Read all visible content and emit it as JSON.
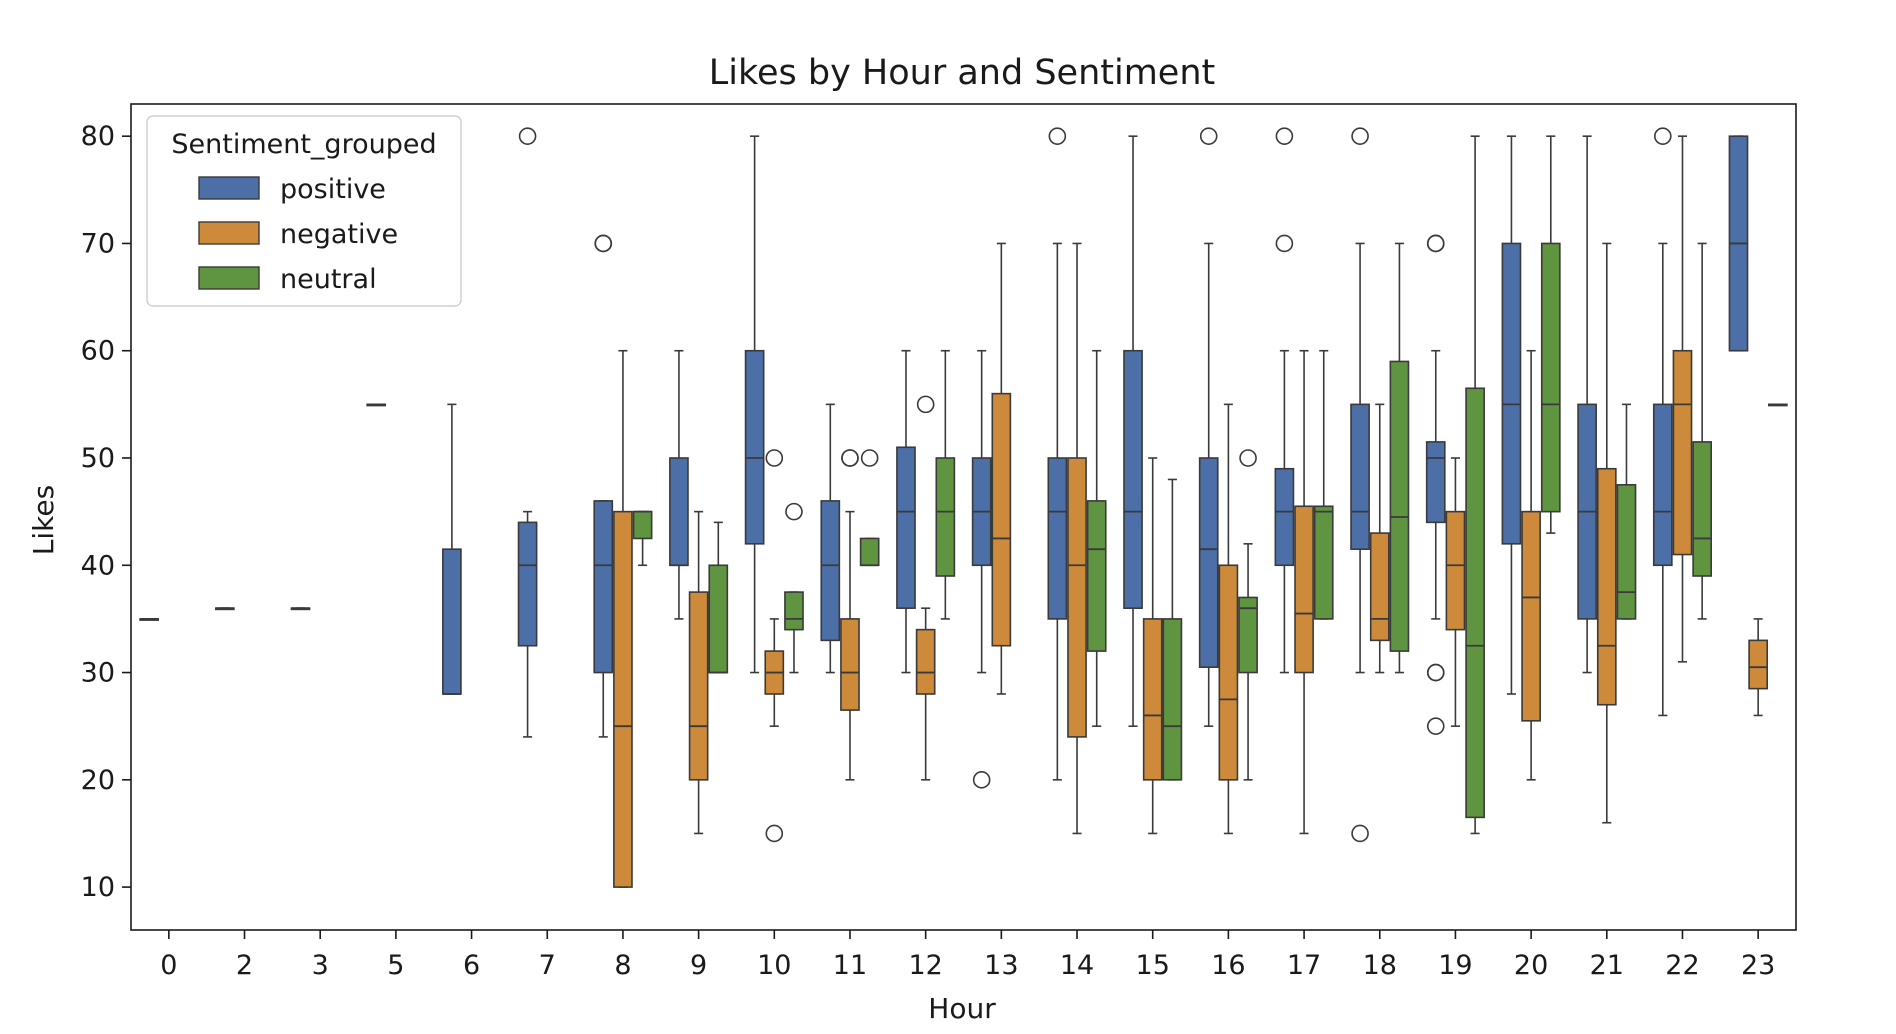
{
  "chart_data": {
    "type": "box",
    "title": "Likes by Hour and Sentiment",
    "xlabel": "Hour",
    "ylabel": "Likes",
    "ylim": [
      6,
      83
    ],
    "yticks": [
      10,
      20,
      30,
      40,
      50,
      60,
      70,
      80
    ],
    "categories": [
      "0",
      "2",
      "3",
      "5",
      "6",
      "7",
      "8",
      "9",
      "10",
      "11",
      "12",
      "13",
      "14",
      "15",
      "16",
      "17",
      "18",
      "19",
      "20",
      "21",
      "22",
      "23"
    ],
    "legend": {
      "title": "Sentiment_grouped",
      "placement": "upper-left"
    },
    "series": [
      {
        "name": "positive",
        "color": "#4c6fa8"
      },
      {
        "name": "negative",
        "color": "#cc8a3a"
      },
      {
        "name": "neutral",
        "color": "#5f9441"
      }
    ],
    "boxes": [
      {
        "hour": "0",
        "series": "positive",
        "offset": -1,
        "whislo": 35,
        "q1": 35,
        "med": 35,
        "q3": 35,
        "whishi": 35,
        "fliers": []
      },
      {
        "hour": "2",
        "series": "positive",
        "offset": -1,
        "whislo": 36,
        "q1": 36,
        "med": 36,
        "q3": 36,
        "whishi": 36,
        "fliers": []
      },
      {
        "hour": "3",
        "series": "positive",
        "offset": -1,
        "whislo": 36,
        "q1": 36,
        "med": 36,
        "q3": 36,
        "whishi": 36,
        "fliers": []
      },
      {
        "hour": "5",
        "series": "positive",
        "offset": -1,
        "whislo": 55,
        "q1": 55,
        "med": 55,
        "q3": 55,
        "whishi": 55,
        "fliers": []
      },
      {
        "hour": "6",
        "series": "positive",
        "offset": -1,
        "whislo": 28,
        "q1": 28,
        "med": 28,
        "q3": 41.5,
        "whishi": 55,
        "fliers": []
      },
      {
        "hour": "7",
        "series": "positive",
        "offset": -1,
        "whislo": 24,
        "q1": 32.5,
        "med": 40,
        "q3": 44,
        "whishi": 45,
        "fliers": [
          80
        ]
      },
      {
        "hour": "8",
        "series": "positive",
        "offset": -1,
        "whislo": 24,
        "q1": 30,
        "med": 40,
        "q3": 46,
        "whishi": 46,
        "fliers": [
          70,
          70
        ]
      },
      {
        "hour": "8",
        "series": "negative",
        "offset": 0,
        "whislo": 10,
        "q1": 10,
        "med": 25,
        "q3": 45,
        "whishi": 60,
        "fliers": []
      },
      {
        "hour": "8",
        "series": "neutral",
        "offset": 1,
        "whislo": 40,
        "q1": 42.5,
        "med": 45,
        "q3": 45,
        "whishi": 45,
        "fliers": []
      },
      {
        "hour": "9",
        "series": "positive",
        "offset": -1,
        "whislo": 35,
        "q1": 40,
        "med": 40,
        "q3": 50,
        "whishi": 60,
        "fliers": []
      },
      {
        "hour": "9",
        "series": "negative",
        "offset": 0,
        "whislo": 15,
        "q1": 20,
        "med": 25,
        "q3": 37.5,
        "whishi": 45,
        "fliers": []
      },
      {
        "hour": "9",
        "series": "neutral",
        "offset": 1,
        "whislo": 30,
        "q1": 30,
        "med": 30,
        "q3": 40,
        "whishi": 44,
        "fliers": []
      },
      {
        "hour": "10",
        "series": "positive",
        "offset": -1,
        "whislo": 30,
        "q1": 42,
        "med": 50,
        "q3": 60,
        "whishi": 80,
        "fliers": []
      },
      {
        "hour": "10",
        "series": "negative",
        "offset": 0,
        "whislo": 25,
        "q1": 28,
        "med": 30,
        "q3": 32,
        "whishi": 35,
        "fliers": [
          50,
          15
        ]
      },
      {
        "hour": "10",
        "series": "neutral",
        "offset": 1,
        "whislo": 30,
        "q1": 34,
        "med": 35,
        "q3": 37.5,
        "whishi": 37.5,
        "fliers": [
          45
        ]
      },
      {
        "hour": "11",
        "series": "positive",
        "offset": -1,
        "whislo": 30,
        "q1": 33,
        "med": 40,
        "q3": 46,
        "whishi": 55,
        "fliers": []
      },
      {
        "hour": "11",
        "series": "negative",
        "offset": 0,
        "whislo": 20,
        "q1": 26.5,
        "med": 30,
        "q3": 35,
        "whishi": 45,
        "fliers": [
          50,
          50
        ]
      },
      {
        "hour": "11",
        "series": "neutral",
        "offset": 1,
        "whislo": 40,
        "q1": 40,
        "med": 40,
        "q3": 42.5,
        "whishi": 42.5,
        "fliers": [
          50
        ]
      },
      {
        "hour": "12",
        "series": "positive",
        "offset": -1,
        "whislo": 30,
        "q1": 36,
        "med": 45,
        "q3": 51,
        "whishi": 60,
        "fliers": []
      },
      {
        "hour": "12",
        "series": "negative",
        "offset": 0,
        "whislo": 20,
        "q1": 28,
        "med": 30,
        "q3": 34,
        "whishi": 36,
        "fliers": [
          55
        ]
      },
      {
        "hour": "12",
        "series": "neutral",
        "offset": 1,
        "whislo": 35,
        "q1": 39,
        "med": 45,
        "q3": 50,
        "whishi": 60,
        "fliers": []
      },
      {
        "hour": "13",
        "series": "positive",
        "offset": -1,
        "whislo": 30,
        "q1": 40,
        "med": 45,
        "q3": 50,
        "whishi": 60,
        "fliers": [
          20
        ]
      },
      {
        "hour": "13",
        "series": "negative",
        "offset": 0,
        "whislo": 28,
        "q1": 32.5,
        "med": 42.5,
        "q3": 56,
        "whishi": 70,
        "fliers": []
      },
      {
        "hour": "14",
        "series": "positive",
        "offset": -1,
        "whislo": 20,
        "q1": 35,
        "med": 45,
        "q3": 50,
        "whishi": 70,
        "fliers": [
          80
        ]
      },
      {
        "hour": "14",
        "series": "negative",
        "offset": 0,
        "whislo": 15,
        "q1": 24,
        "med": 40,
        "q3": 50,
        "whishi": 70,
        "fliers": []
      },
      {
        "hour": "14",
        "series": "neutral",
        "offset": 1,
        "whislo": 25,
        "q1": 32,
        "med": 41.5,
        "q3": 46,
        "whishi": 60,
        "fliers": []
      },
      {
        "hour": "15",
        "series": "positive",
        "offset": -1,
        "whislo": 25,
        "q1": 36,
        "med": 45,
        "q3": 60,
        "whishi": 80,
        "fliers": []
      },
      {
        "hour": "15",
        "series": "negative",
        "offset": 0,
        "whislo": 15,
        "q1": 20,
        "med": 26,
        "q3": 35,
        "whishi": 50,
        "fliers": []
      },
      {
        "hour": "15",
        "series": "neutral",
        "offset": 1,
        "whislo": 20,
        "q1": 20,
        "med": 25,
        "q3": 35,
        "whishi": 48,
        "fliers": []
      },
      {
        "hour": "16",
        "series": "positive",
        "offset": -1,
        "whislo": 25,
        "q1": 30.5,
        "med": 41.5,
        "q3": 50,
        "whishi": 70,
        "fliers": [
          80
        ]
      },
      {
        "hour": "16",
        "series": "negative",
        "offset": 0,
        "whislo": 15,
        "q1": 20,
        "med": 27.5,
        "q3": 40,
        "whishi": 55,
        "fliers": []
      },
      {
        "hour": "16",
        "series": "neutral",
        "offset": 1,
        "whislo": 20,
        "q1": 30,
        "med": 36,
        "q3": 37,
        "whishi": 42,
        "fliers": [
          50
        ]
      },
      {
        "hour": "17",
        "series": "positive",
        "offset": -1,
        "whislo": 30,
        "q1": 40,
        "med": 45,
        "q3": 49,
        "whishi": 60,
        "fliers": [
          80,
          70
        ]
      },
      {
        "hour": "17",
        "series": "negative",
        "offset": 0,
        "whislo": 15,
        "q1": 30,
        "med": 35.5,
        "q3": 45.5,
        "whishi": 60,
        "fliers": []
      },
      {
        "hour": "17",
        "series": "neutral",
        "offset": 1,
        "whislo": 35,
        "q1": 35,
        "med": 45,
        "q3": 45.5,
        "whishi": 60,
        "fliers": []
      },
      {
        "hour": "18",
        "series": "positive",
        "offset": -1,
        "whislo": 30,
        "q1": 41.5,
        "med": 45,
        "q3": 55,
        "whishi": 70,
        "fliers": [
          80,
          15
        ]
      },
      {
        "hour": "18",
        "series": "negative",
        "offset": 0,
        "whislo": 30,
        "q1": 33,
        "med": 35,
        "q3": 43,
        "whishi": 55,
        "fliers": []
      },
      {
        "hour": "18",
        "series": "neutral",
        "offset": 1,
        "whislo": 30,
        "q1": 32,
        "med": 44.5,
        "q3": 59,
        "whishi": 70,
        "fliers": []
      },
      {
        "hour": "19",
        "series": "positive",
        "offset": -1,
        "whislo": 35,
        "q1": 44,
        "med": 50,
        "q3": 51.5,
        "whishi": 60,
        "fliers": [
          70,
          70,
          30,
          30,
          25
        ]
      },
      {
        "hour": "19",
        "series": "negative",
        "offset": 0,
        "whislo": 25,
        "q1": 34,
        "med": 40,
        "q3": 45,
        "whishi": 50,
        "fliers": []
      },
      {
        "hour": "19",
        "series": "neutral",
        "offset": 1,
        "whislo": 15,
        "q1": 16.5,
        "med": 32.5,
        "q3": 56.5,
        "whishi": 80,
        "fliers": []
      },
      {
        "hour": "20",
        "series": "positive",
        "offset": -1,
        "whislo": 28,
        "q1": 42,
        "med": 55,
        "q3": 70,
        "whishi": 80,
        "fliers": []
      },
      {
        "hour": "20",
        "series": "negative",
        "offset": 0,
        "whislo": 20,
        "q1": 25.5,
        "med": 37,
        "q3": 45,
        "whishi": 60,
        "fliers": []
      },
      {
        "hour": "20",
        "series": "neutral",
        "offset": 1,
        "whislo": 43,
        "q1": 45,
        "med": 55,
        "q3": 70,
        "whishi": 80,
        "fliers": []
      },
      {
        "hour": "21",
        "series": "positive",
        "offset": -1,
        "whislo": 30,
        "q1": 35,
        "med": 45,
        "q3": 55,
        "whishi": 80,
        "fliers": []
      },
      {
        "hour": "21",
        "series": "negative",
        "offset": 0,
        "whislo": 16,
        "q1": 27,
        "med": 32.5,
        "q3": 49,
        "whishi": 70,
        "fliers": []
      },
      {
        "hour": "21",
        "series": "neutral",
        "offset": 1,
        "whislo": 35,
        "q1": 35,
        "med": 37.5,
        "q3": 47.5,
        "whishi": 55,
        "fliers": []
      },
      {
        "hour": "22",
        "series": "positive",
        "offset": -1,
        "whislo": 26,
        "q1": 40,
        "med": 45,
        "q3": 55,
        "whishi": 70,
        "fliers": [
          80
        ]
      },
      {
        "hour": "22",
        "series": "negative",
        "offset": 0,
        "whislo": 31,
        "q1": 41,
        "med": 55,
        "q3": 60,
        "whishi": 80,
        "fliers": []
      },
      {
        "hour": "22",
        "series": "neutral",
        "offset": 1,
        "whislo": 35,
        "q1": 39,
        "med": 42.5,
        "q3": 51.5,
        "whishi": 70,
        "fliers": []
      },
      {
        "hour": "23",
        "series": "positive",
        "offset": -1,
        "whislo": 60,
        "q1": 60,
        "med": 70,
        "q3": 80,
        "whishi": 80,
        "fliers": []
      },
      {
        "hour": "23",
        "series": "negative",
        "offset": 0,
        "whislo": 26,
        "q1": 28.5,
        "med": 30.5,
        "q3": 33,
        "whishi": 35,
        "fliers": []
      },
      {
        "hour": "23",
        "series": "neutral",
        "offset": 1,
        "whislo": 55,
        "q1": 55,
        "med": 55,
        "q3": 55,
        "whishi": 55,
        "fliers": []
      }
    ]
  }
}
